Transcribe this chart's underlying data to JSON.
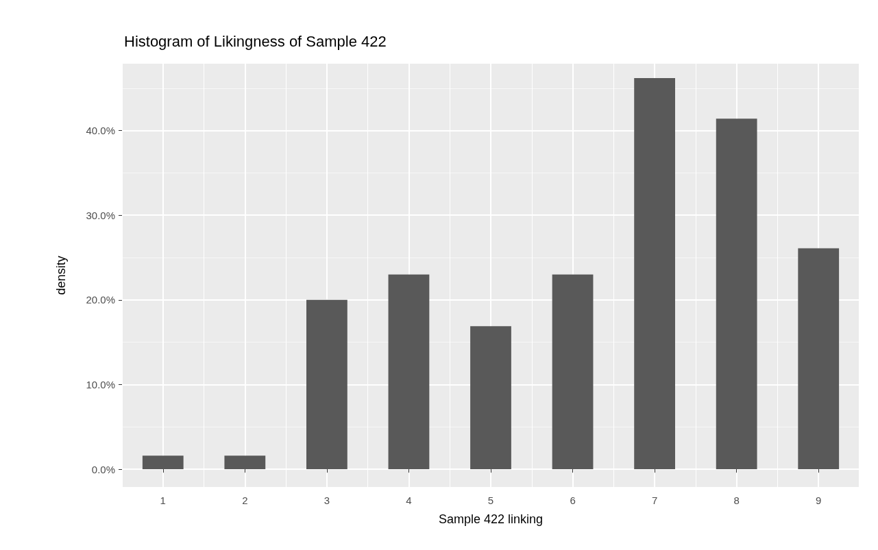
{
  "chart_data": {
    "type": "bar",
    "title": "Histogram of Likingness of Sample 422",
    "xlabel": "Sample 422 linking",
    "ylabel": "density",
    "categories": [
      "1",
      "2",
      "3",
      "4",
      "5",
      "6",
      "7",
      "8",
      "9"
    ],
    "values": [
      1.6,
      1.6,
      20.0,
      23.0,
      16.9,
      23.0,
      46.2,
      41.4,
      26.1
    ],
    "color": "#595959",
    "ylim": [
      -2.1,
      47.9
    ],
    "yticks": [
      {
        "value": 0,
        "label": "0.0%"
      },
      {
        "value": 10,
        "label": "10.0%"
      },
      {
        "value": 20,
        "label": "20.0%"
      },
      {
        "value": 30,
        "label": "30.0%"
      },
      {
        "value": 40,
        "label": "40.0%"
      }
    ],
    "grid": true
  }
}
